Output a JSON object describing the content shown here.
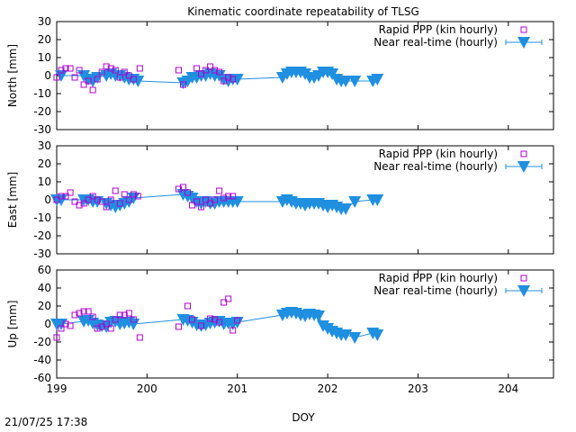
{
  "chart_data": {
    "type": "scatter",
    "title": "Kinematic coordinate repeatability of TLSG",
    "xlabel": "DOY",
    "timestamp": "21/07/25 17:38",
    "xlim": [
      199,
      204.5
    ],
    "xticks": [
      199,
      200,
      201,
      202,
      203,
      204
    ],
    "legend_position": "top-right",
    "colors": {
      "rapid": "#b000d0",
      "nrt": "#1f8fe0"
    },
    "panels": [
      {
        "ylabel": "North [mm]",
        "ylim": [
          -30,
          30
        ],
        "yticks": [
          -30,
          -20,
          -10,
          0,
          10,
          20,
          30
        ],
        "series": [
          {
            "name": "Rapid PPP (kin hourly)",
            "marker": "open-square",
            "points": [
              [
                199.0,
                -1
              ],
              [
                199.05,
                3
              ],
              [
                199.1,
                4
              ],
              [
                199.15,
                4
              ],
              [
                199.2,
                -1
              ],
              [
                199.25,
                3
              ],
              [
                199.3,
                -5
              ],
              [
                199.35,
                -3
              ],
              [
                199.4,
                -8
              ],
              [
                199.45,
                -2
              ],
              [
                199.5,
                2
              ],
              [
                199.55,
                5
              ],
              [
                199.6,
                4
              ],
              [
                199.65,
                3
              ],
              [
                199.7,
                -1
              ],
              [
                199.75,
                2
              ],
              [
                199.8,
                0
              ],
              [
                199.85,
                -2
              ],
              [
                199.92,
                4
              ],
              [
                200.35,
                3
              ],
              [
                200.4,
                -5
              ],
              [
                200.55,
                4
              ],
              [
                200.6,
                1
              ],
              [
                200.65,
                3
              ],
              [
                200.7,
                5
              ],
              [
                200.75,
                3
              ],
              [
                200.8,
                2
              ],
              [
                200.85,
                -3
              ],
              [
                200.9,
                -1
              ],
              [
                200.95,
                -2
              ]
            ]
          },
          {
            "name": "Near real-time (hourly)",
            "marker": "filled-triangle-down",
            "points": [
              [
                199.05,
                0
              ],
              [
                199.3,
                0
              ],
              [
                199.35,
                -2
              ],
              [
                199.4,
                -3
              ],
              [
                199.45,
                -1
              ],
              [
                199.55,
                0
              ],
              [
                199.6,
                1
              ],
              [
                199.65,
                0
              ],
              [
                199.7,
                0
              ],
              [
                199.75,
                -1
              ],
              [
                199.8,
                -2
              ],
              [
                199.85,
                -2
              ],
              [
                199.9,
                -3
              ],
              [
                200.4,
                -4
              ],
              [
                200.45,
                -3
              ],
              [
                200.5,
                -1
              ],
              [
                200.55,
                -1
              ],
              [
                200.6,
                0
              ],
              [
                200.65,
                0
              ],
              [
                200.7,
                1
              ],
              [
                200.75,
                0
              ],
              [
                200.8,
                0
              ],
              [
                200.85,
                -2
              ],
              [
                200.9,
                -3
              ],
              [
                200.95,
                -2
              ],
              [
                201.0,
                -2
              ],
              [
                201.5,
                -1
              ],
              [
                201.55,
                1
              ],
              [
                201.6,
                2
              ],
              [
                201.65,
                2
              ],
              [
                201.7,
                2
              ],
              [
                201.75,
                1
              ],
              [
                201.8,
                -1
              ],
              [
                201.85,
                -1
              ],
              [
                201.9,
                0
              ],
              [
                201.95,
                2
              ],
              [
                202.0,
                2
              ],
              [
                202.05,
                1
              ],
              [
                202.1,
                -2
              ],
              [
                202.15,
                -3
              ],
              [
                202.2,
                -3
              ],
              [
                202.3,
                -3
              ],
              [
                202.5,
                -3
              ],
              [
                202.55,
                -2
              ]
            ]
          }
        ]
      },
      {
        "ylabel": "East [mm]",
        "ylim": [
          -30,
          30
        ],
        "yticks": [
          -30,
          -20,
          -10,
          0,
          10,
          20,
          30
        ],
        "series": [
          {
            "name": "Rapid PPP (kin hourly)",
            "marker": "open-square",
            "points": [
              [
                199.0,
                0
              ],
              [
                199.05,
                2
              ],
              [
                199.1,
                2
              ],
              [
                199.15,
                4
              ],
              [
                199.2,
                -1
              ],
              [
                199.25,
                -3
              ],
              [
                199.3,
                -2
              ],
              [
                199.35,
                0
              ],
              [
                199.4,
                2
              ],
              [
                199.45,
                0
              ],
              [
                199.5,
                -1
              ],
              [
                199.55,
                -4
              ],
              [
                199.6,
                0
              ],
              [
                199.65,
                5
              ],
              [
                199.7,
                -2
              ],
              [
                199.75,
                3
              ],
              [
                199.8,
                0
              ],
              [
                199.85,
                3
              ],
              [
                199.9,
                2
              ],
              [
                200.35,
                6
              ],
              [
                200.4,
                7
              ],
              [
                200.45,
                4
              ],
              [
                200.5,
                -3
              ],
              [
                200.55,
                -1
              ],
              [
                200.6,
                -4
              ],
              [
                200.65,
                0
              ],
              [
                200.7,
                -2
              ],
              [
                200.75,
                0
              ],
              [
                200.8,
                5
              ],
              [
                200.85,
                1
              ],
              [
                200.9,
                2
              ],
              [
                200.95,
                2
              ]
            ]
          },
          {
            "name": "Near real-time (hourly)",
            "marker": "filled-triangle-down",
            "points": [
              [
                199.0,
                0
              ],
              [
                199.05,
                0
              ],
              [
                199.3,
                0
              ],
              [
                199.35,
                0
              ],
              [
                199.4,
                -1
              ],
              [
                199.45,
                -1
              ],
              [
                199.55,
                -2
              ],
              [
                199.6,
                -3
              ],
              [
                199.65,
                -4
              ],
              [
                199.7,
                -3
              ],
              [
                199.75,
                -2
              ],
              [
                199.8,
                -1
              ],
              [
                199.85,
                1
              ],
              [
                200.4,
                3
              ],
              [
                200.45,
                2
              ],
              [
                200.5,
                1
              ],
              [
                200.55,
                -1
              ],
              [
                200.6,
                -2
              ],
              [
                200.65,
                -1
              ],
              [
                200.7,
                -2
              ],
              [
                200.75,
                -2
              ],
              [
                200.8,
                -1
              ],
              [
                200.85,
                -1
              ],
              [
                200.9,
                -1
              ],
              [
                200.95,
                -1
              ],
              [
                201.0,
                -1
              ],
              [
                201.5,
                -1
              ],
              [
                201.55,
                0
              ],
              [
                201.6,
                -1
              ],
              [
                201.65,
                -2
              ],
              [
                201.7,
                -2
              ],
              [
                201.75,
                -3
              ],
              [
                201.8,
                -2
              ],
              [
                201.85,
                -2
              ],
              [
                201.9,
                -2
              ],
              [
                201.95,
                -3
              ],
              [
                202.0,
                -4
              ],
              [
                202.05,
                -3
              ],
              [
                202.1,
                -4
              ],
              [
                202.15,
                -5
              ],
              [
                202.2,
                -5
              ],
              [
                202.3,
                -1
              ],
              [
                202.5,
                0
              ],
              [
                202.55,
                0
              ]
            ]
          }
        ]
      },
      {
        "ylabel": "Up [mm]",
        "ylim": [
          -60,
          60
        ],
        "yticks": [
          -60,
          -40,
          -20,
          0,
          20,
          40,
          60
        ],
        "series": [
          {
            "name": "Rapid PPP (kin hourly)",
            "marker": "open-square",
            "points": [
              [
                199.0,
                -15
              ],
              [
                199.05,
                -5
              ],
              [
                199.1,
                0
              ],
              [
                199.15,
                -2
              ],
              [
                199.2,
                10
              ],
              [
                199.25,
                12
              ],
              [
                199.3,
                14
              ],
              [
                199.35,
                14
              ],
              [
                199.4,
                8
              ],
              [
                199.45,
                -5
              ],
              [
                199.5,
                -3
              ],
              [
                199.55,
                0
              ],
              [
                199.6,
                -5
              ],
              [
                199.65,
                5
              ],
              [
                199.7,
                10
              ],
              [
                199.75,
                10
              ],
              [
                199.8,
                12
              ],
              [
                199.85,
                5
              ],
              [
                199.92,
                -15
              ],
              [
                200.35,
                -3
              ],
              [
                200.45,
                20
              ],
              [
                200.5,
                5
              ],
              [
                200.6,
                -2
              ],
              [
                200.7,
                6
              ],
              [
                200.75,
                5
              ],
              [
                200.8,
                2
              ],
              [
                200.85,
                24
              ],
              [
                200.9,
                28
              ],
              [
                200.95,
                -7
              ],
              [
                201.0,
                4
              ]
            ]
          },
          {
            "name": "Near real-time (hourly)",
            "marker": "filled-triangle-down",
            "points": [
              [
                199.0,
                0
              ],
              [
                199.05,
                0
              ],
              [
                199.3,
                3
              ],
              [
                199.35,
                4
              ],
              [
                199.4,
                1
              ],
              [
                199.45,
                -1
              ],
              [
                199.5,
                -2
              ],
              [
                199.55,
                -3
              ],
              [
                199.6,
                2
              ],
              [
                199.65,
                3
              ],
              [
                199.7,
                0
              ],
              [
                199.75,
                1
              ],
              [
                199.8,
                2
              ],
              [
                199.85,
                0
              ],
              [
                200.4,
                5
              ],
              [
                200.45,
                4
              ],
              [
                200.5,
                2
              ],
              [
                200.55,
                -1
              ],
              [
                200.6,
                -2
              ],
              [
                200.65,
                -1
              ],
              [
                200.7,
                1
              ],
              [
                200.75,
                2
              ],
              [
                200.8,
                3
              ],
              [
                200.85,
                0
              ],
              [
                200.9,
                1
              ],
              [
                200.95,
                0
              ],
              [
                201.0,
                2
              ],
              [
                201.5,
                10
              ],
              [
                201.55,
                12
              ],
              [
                201.6,
                13
              ],
              [
                201.65,
                12
              ],
              [
                201.7,
                10
              ],
              [
                201.75,
                9
              ],
              [
                201.8,
                11
              ],
              [
                201.85,
                10
              ],
              [
                201.9,
                9
              ],
              [
                201.95,
                -2
              ],
              [
                202.0,
                -5
              ],
              [
                202.05,
                -8
              ],
              [
                202.1,
                -10
              ],
              [
                202.15,
                -12
              ],
              [
                202.2,
                -12
              ],
              [
                202.3,
                -15
              ],
              [
                202.5,
                -10
              ],
              [
                202.55,
                -12
              ]
            ]
          }
        ]
      }
    ]
  }
}
